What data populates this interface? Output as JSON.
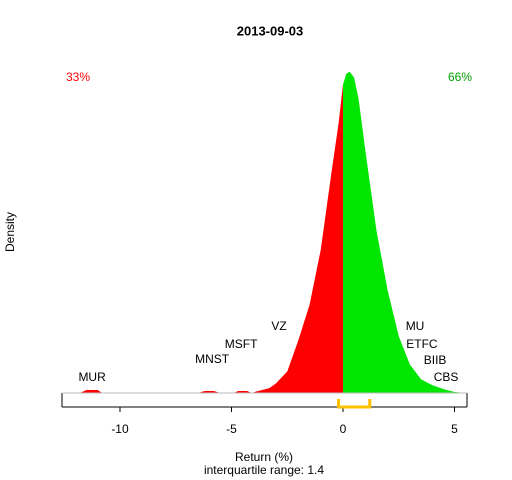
{
  "chart_data": {
    "type": "density",
    "title": "2013-09-03",
    "x_label": "Return (%)",
    "subtitle": "interquartile range: 1.4",
    "y_label": "Density",
    "xlim": [
      -12.6,
      5.56
    ],
    "ylim": [
      0,
      0.34
    ],
    "xticks": [
      -10,
      -5,
      0,
      5
    ],
    "series": [
      {
        "color": "#ff0000",
        "x": [
          -12.6,
          -11.8,
          -11.5,
          -11,
          -10.8,
          -6.5,
          -6.2,
          -5.8,
          -5.5,
          -4.9,
          -4.7,
          -4.3,
          -4.1,
          -3.8,
          -3.3,
          -3,
          -2.5,
          -2,
          -1.5,
          -1,
          -0.5,
          -0.2,
          0
        ],
        "values": [
          0,
          0,
          0.003,
          0.003,
          0,
          0,
          0.002,
          0.002,
          0,
          0,
          0.002,
          0.002,
          0,
          0.002,
          0.005,
          0.01,
          0.022,
          0.054,
          0.09,
          0.146,
          0.228,
          0.275,
          0.315
        ]
      },
      {
        "color": "#00e600",
        "x": [
          0,
          0.15,
          0.3,
          0.5,
          0.7,
          1,
          1.5,
          2,
          2.5,
          3,
          3.5,
          4,
          4.5,
          5,
          5.56
        ],
        "values": [
          0.315,
          0.326,
          0.328,
          0.322,
          0.3,
          0.248,
          0.166,
          0.105,
          0.058,
          0.029,
          0.014,
          0.008,
          0.004,
          0.001,
          0
        ]
      }
    ],
    "left_label": "33%",
    "right_label": "66%",
    "iqr": [
      -0.2,
      1.2
    ],
    "annotations": [
      {
        "text": "MUR",
        "x": -11.25
      },
      {
        "text": "MNST",
        "x": -5.87
      },
      {
        "text": "MSFT",
        "x": -4.57
      },
      {
        "text": "VZ",
        "x": -2.87
      },
      {
        "text": "MU",
        "x": 3.23
      },
      {
        "text": "ETFC",
        "x": 3.54
      },
      {
        "text": "BIIB",
        "x": 4.13
      },
      {
        "text": "CBS",
        "x": 4.62
      }
    ]
  }
}
